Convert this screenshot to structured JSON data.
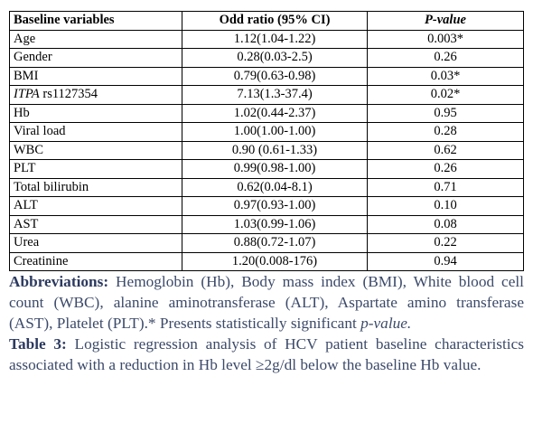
{
  "table": {
    "header": [
      "Baseline variables",
      "Odd ratio (95% CI)",
      "P-value"
    ],
    "rows": [
      [
        "Age",
        "1.12(1.04-1.22)",
        "0.003*"
      ],
      [
        "Gender",
        "0.28(0.03-2.5)",
        "0.26"
      ],
      [
        "BMI",
        "0.79(0.63-0.98)",
        "0.03*"
      ],
      [
        {
          "italic": "ITPA",
          "text": "rs1127354"
        },
        "7.13(1.3-37.4)",
        "0.02*"
      ],
      [
        "Hb",
        "1.02(0.44-2.37)",
        "0.95"
      ],
      [
        "Viral load",
        "1.00(1.00-1.00)",
        "0.28"
      ],
      [
        "WBC",
        "0.90 (0.61-1.33)",
        "0.62"
      ],
      [
        "PLT",
        "0.99(0.98-1.00)",
        "0.26"
      ],
      [
        "Total bilirubin",
        "0.62(0.04-8.1)",
        "0.71"
      ],
      [
        "ALT",
        "0.97(0.93-1.00)",
        "0.10"
      ],
      [
        "AST",
        "1.03(0.99-1.06)",
        "0.08"
      ],
      [
        "Urea",
        "0.88(0.72-1.07)",
        "0.22"
      ],
      [
        "Creatinine",
        "1.20(0.008-176)",
        "0.94"
      ]
    ]
  },
  "abbreviations": {
    "label": "Abbreviations:",
    "text": "Hemoglobin (Hb), Body mass index (BMI), White blood cell count (WBC), alanine aminotransferase (ALT), Aspartate amino transferase (AST), Platelet (PLT).* Presents statistically significant",
    "italic": "p-value."
  },
  "caption": {
    "label": "Table 3:",
    "text": "Logistic regression analysis of HCV patient baseline characteristics associated with a reduction in Hb level ≥2g/dl below the baseline Hb value."
  }
}
